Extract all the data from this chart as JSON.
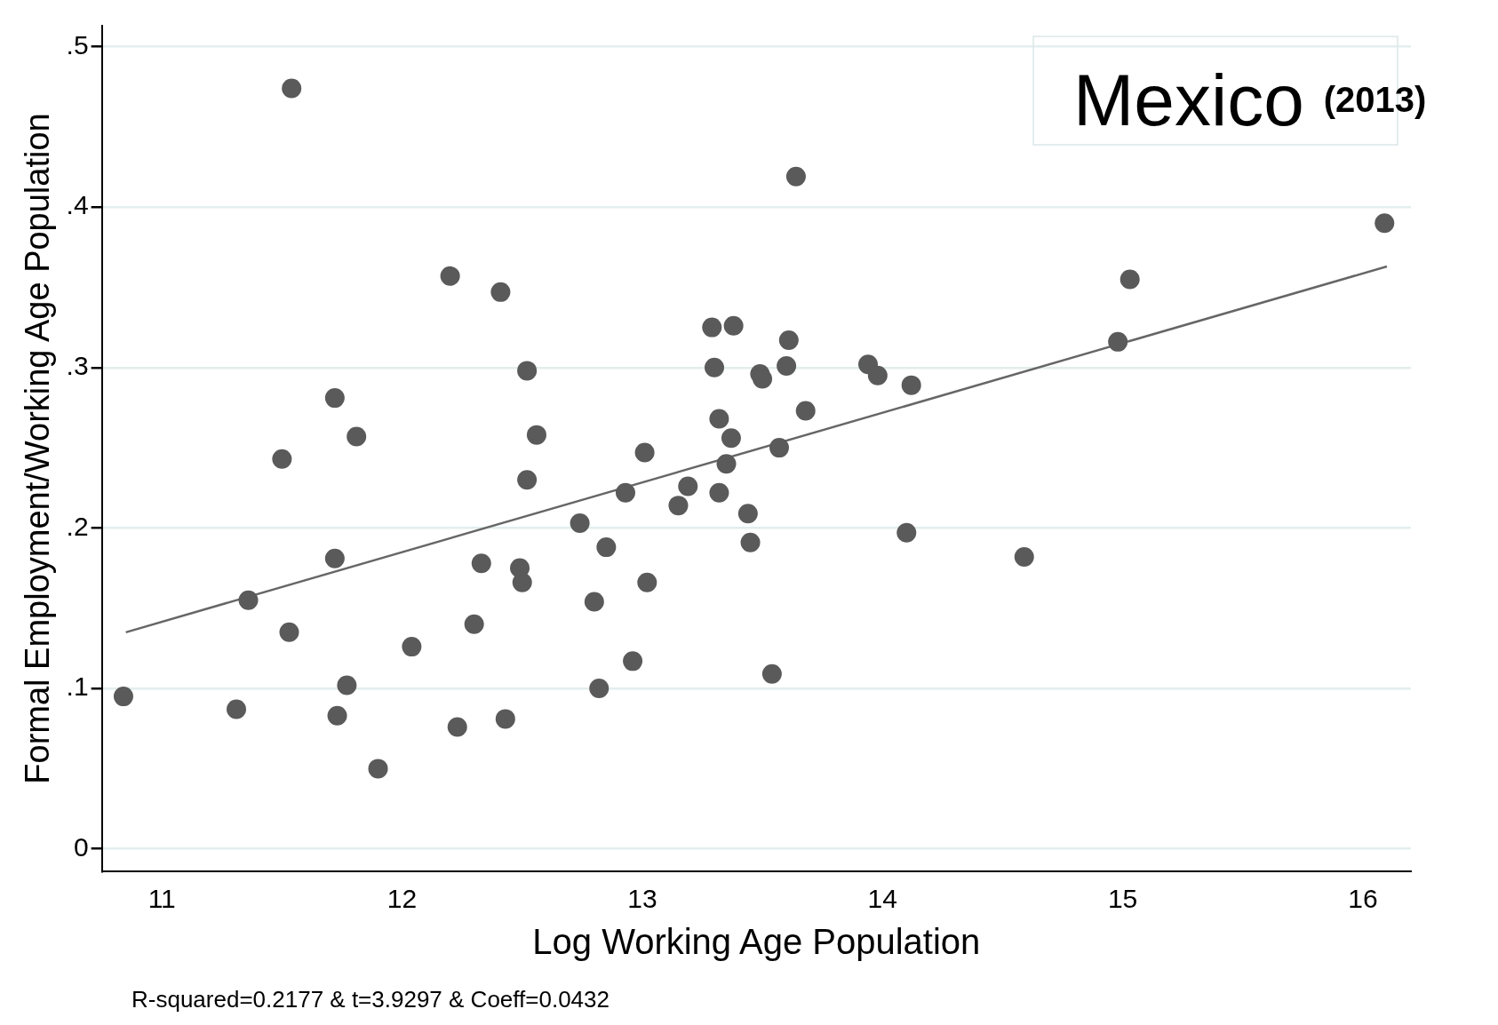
{
  "chart_data": {
    "type": "scatter",
    "title": "Mexico",
    "subtitle": "(2013)",
    "xlabel": "Log Working Age Population",
    "ylabel": "Formal Employment/Working Age Population",
    "annotations": [
      "R-squared=0.2177 & t=3.9297 & Coeff=0.0432"
    ],
    "xlim": [
      10.75,
      16.2
    ],
    "ylim": [
      -0.014,
      0.513
    ],
    "xticks": [
      11,
      12,
      13,
      14,
      15,
      16
    ],
    "yticks": [
      {
        "value": 0,
        "label": "0"
      },
      {
        "value": 0.1,
        "label": ".1"
      },
      {
        "value": 0.2,
        "label": ".2"
      },
      {
        "value": 0.3,
        "label": ".3"
      },
      {
        "value": 0.4,
        "label": ".4"
      },
      {
        "value": 0.5,
        "label": ".5"
      }
    ],
    "grid": "y",
    "legend": false,
    "marker": "circle",
    "series": [
      {
        "color": "#5a5a5a",
        "x": [
          10.84,
          11.31,
          11.36,
          11.5,
          11.53,
          11.54,
          11.72,
          11.72,
          11.73,
          11.77,
          11.81,
          11.9,
          12.04,
          12.2,
          12.23,
          12.3,
          12.33,
          12.41,
          12.43,
          12.49,
          12.5,
          12.52,
          12.52,
          12.56,
          12.74,
          12.8,
          12.82,
          12.85,
          12.93,
          12.96,
          13.01,
          13.02,
          13.15,
          13.19,
          13.29,
          13.3,
          13.32,
          13.32,
          13.35,
          13.37,
          13.38,
          13.44,
          13.45,
          13.49,
          13.5,
          13.54,
          13.57,
          13.6,
          13.61,
          13.64,
          13.68,
          13.94,
          13.98,
          14.1,
          14.12,
          14.59,
          14.98,
          15.03,
          16.09
        ],
        "values": [
          0.095,
          0.087,
          0.155,
          0.243,
          0.135,
          0.474,
          0.281,
          0.181,
          0.083,
          0.102,
          0.257,
          0.05,
          0.126,
          0.357,
          0.076,
          0.14,
          0.178,
          0.347,
          0.081,
          0.175,
          0.166,
          0.298,
          0.23,
          0.258,
          0.203,
          0.154,
          0.1,
          0.188,
          0.222,
          0.117,
          0.247,
          0.166,
          0.214,
          0.226,
          0.325,
          0.3,
          0.268,
          0.222,
          0.24,
          0.256,
          0.326,
          0.209,
          0.191,
          0.296,
          0.293,
          0.109,
          0.25,
          0.301,
          0.317,
          0.419,
          0.273,
          0.302,
          0.295,
          0.197,
          0.289,
          0.182,
          0.316,
          0.355,
          0.39
        ]
      },
      {
        "type": "line",
        "color": "#666666",
        "x": [
          10.85,
          16.1
        ],
        "values": [
          0.135,
          0.363
        ],
        "marker": "none",
        "line_style": "solid"
      }
    ]
  }
}
